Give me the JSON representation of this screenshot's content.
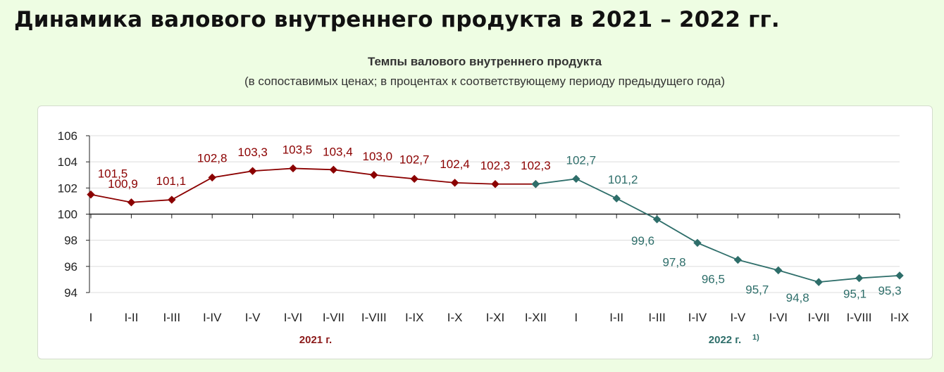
{
  "page": {
    "title": "Динамика валового внутреннего продукта в 2021 – 2022 гг."
  },
  "chart_data": {
    "type": "line",
    "title": "Темпы валового внутреннего продукта",
    "subtitle": "(в сопоставимых ценах; в процентах к соответствующему периоду предыдущего года)",
    "ylim": [
      94,
      106
    ],
    "yticks": [
      94,
      96,
      98,
      100,
      102,
      104,
      106
    ],
    "grid": true,
    "categories": [
      "I",
      "I-II",
      "I-III",
      "I-IV",
      "I-V",
      "I-VI",
      "I-VII",
      "I-VIII",
      "I-IX",
      "I-X",
      "I-XI",
      "I-XII",
      "I",
      "I-II",
      "I-III",
      "I-IV",
      "I-V",
      "I-VI",
      "I-VII",
      "I-VIII",
      "I-IX"
    ],
    "groups": [
      {
        "label": "2021 г.",
        "footnote": "",
        "color": "#8b1a1a"
      },
      {
        "label": "2022 г.",
        "footnote": "1)",
        "color": "#2e6e6a"
      }
    ],
    "series": [
      {
        "values": [
          101.5,
          100.9,
          101.1,
          102.8,
          103.3,
          103.5,
          103.4,
          103.0,
          102.7,
          102.4,
          102.3,
          102.3,
          null,
          null,
          null,
          null,
          null,
          null,
          null,
          null,
          null
        ],
        "labels": [
          "101,5",
          "100,9",
          "101,1",
          "102,8",
          "103,3",
          "103,5",
          "103,4",
          "103,0",
          "102,7",
          "102,4",
          "102,3",
          "102,3",
          null,
          null,
          null,
          null,
          null,
          null,
          null,
          null,
          null
        ],
        "color": "#8b0000"
      },
      {
        "values": [
          null,
          null,
          null,
          null,
          null,
          null,
          null,
          null,
          null,
          null,
          null,
          102.3,
          102.7,
          101.2,
          99.6,
          97.8,
          96.5,
          95.7,
          94.8,
          95.1,
          95.3
        ],
        "labels": [
          null,
          null,
          null,
          null,
          null,
          null,
          null,
          null,
          null,
          null,
          null,
          null,
          "102,7",
          "101,2",
          "99,6",
          "97,8",
          "96,5",
          "95,7",
          "94,8",
          "95,1",
          "95,3"
        ],
        "color": "#2e6e6a"
      }
    ]
  }
}
